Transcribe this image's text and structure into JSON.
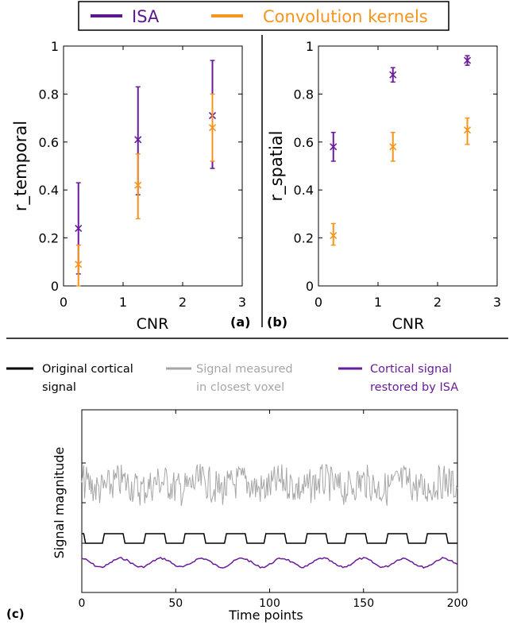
{
  "legend_top": {
    "items": [
      {
        "label": "ISA",
        "color": "#5a1890"
      },
      {
        "label": "Convolution kernels",
        "color": "#f7941d"
      }
    ]
  },
  "panel_labels": {
    "a": "(a)",
    "b": "(b)",
    "c": "(c)"
  },
  "legend_bottom": {
    "items": [
      {
        "lines": [
          "Original cortical",
          "signal"
        ],
        "color": "#000000"
      },
      {
        "lines": [
          "Signal measured",
          "in closest voxel"
        ],
        "color": "#a6a6a6"
      },
      {
        "lines": [
          "Cortical signal",
          "restored by ISA"
        ],
        "color": "#6a1b9a"
      }
    ]
  },
  "chart_data": [
    {
      "type": "scatter",
      "panel": "a",
      "xlabel": "CNR",
      "ylabel": "r_temporal",
      "xlim": [
        0,
        3
      ],
      "ylim": [
        0,
        1
      ],
      "xticks": [
        "0",
        "1",
        "2",
        "3"
      ],
      "yticks": [
        "0",
        "0.2",
        "0.4",
        "0.6",
        "0.8",
        "1"
      ],
      "series": [
        {
          "name": "ISA",
          "color": "#6a1b9a",
          "x": [
            0.25,
            1.25,
            2.5
          ],
          "y": [
            0.24,
            0.61,
            0.71
          ],
          "err_low": [
            0.05,
            0.38,
            0.49
          ],
          "err_high": [
            0.43,
            0.83,
            0.94
          ]
        },
        {
          "name": "Convolution kernels",
          "color": "#f7941d",
          "x": [
            0.25,
            1.25,
            2.5
          ],
          "y": [
            0.09,
            0.42,
            0.66
          ],
          "err_low": [
            0.0,
            0.28,
            0.52
          ],
          "err_high": [
            0.17,
            0.55,
            0.8
          ]
        }
      ]
    },
    {
      "type": "scatter",
      "panel": "b",
      "xlabel": "CNR",
      "ylabel": "r_spatial",
      "xlim": [
        0,
        3
      ],
      "ylim": [
        0,
        1
      ],
      "xticks": [
        "0",
        "1",
        "2",
        "3"
      ],
      "yticks": [
        "0",
        "0.2",
        "0.4",
        "0.6",
        "0.8",
        "1"
      ],
      "series": [
        {
          "name": "ISA",
          "color": "#6a1b9a",
          "x": [
            0.25,
            1.25,
            2.5
          ],
          "y": [
            0.58,
            0.88,
            0.94
          ],
          "err_low": [
            0.52,
            0.85,
            0.92
          ],
          "err_high": [
            0.64,
            0.91,
            0.96
          ]
        },
        {
          "name": "Convolution kernels",
          "color": "#f7941d",
          "x": [
            0.25,
            1.25,
            2.5
          ],
          "y": [
            0.21,
            0.58,
            0.65
          ],
          "err_low": [
            0.17,
            0.52,
            0.59
          ],
          "err_high": [
            0.26,
            0.64,
            0.7
          ]
        }
      ]
    },
    {
      "type": "line",
      "panel": "c",
      "xlabel": "Time points",
      "ylabel": "Signal magnitude",
      "xlim": [
        0,
        200
      ],
      "xticks": [
        "0",
        "50",
        "100",
        "150",
        "200"
      ],
      "series": [
        {
          "name": "Original cortical signal",
          "color": "#000000"
        },
        {
          "name": "Signal measured in closest voxel",
          "color": "#a6a6a6"
        },
        {
          "name": "Cortical signal restored by ISA",
          "color": "#6a1b9a"
        }
      ]
    }
  ]
}
